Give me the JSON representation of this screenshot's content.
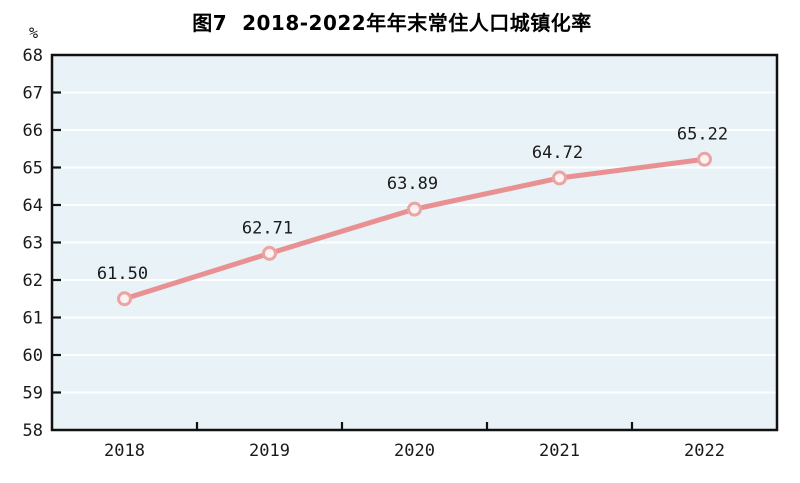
{
  "chart_data": {
    "type": "line",
    "title": "图7  2018-2022年年末常住人口城镇化率",
    "ylabel": "%",
    "xlabel": "",
    "categories": [
      "2018",
      "2019",
      "2020",
      "2021",
      "2022"
    ],
    "series": [
      {
        "name": "年末常住人口城镇化率",
        "values": [
          61.5,
          62.71,
          63.89,
          64.72,
          65.22
        ]
      }
    ],
    "data_labels": [
      "61.50",
      "62.71",
      "63.89",
      "64.72",
      "65.22"
    ],
    "ylim": [
      58,
      68
    ],
    "ytick_step": 1,
    "ytick_labels": [
      "58",
      "59",
      "60",
      "61",
      "62",
      "63",
      "64",
      "65",
      "66",
      "67",
      "68"
    ],
    "grid": "horizontal",
    "legend_position": "none",
    "colors": {
      "line": "#e89092",
      "marker_stroke": "#eba4a2",
      "marker_fill": "#fcf2f1",
      "plot_bg": "#e9f2f6",
      "grid": "#ffffff",
      "axis": "#111111",
      "text": "#1a1a1a"
    }
  }
}
